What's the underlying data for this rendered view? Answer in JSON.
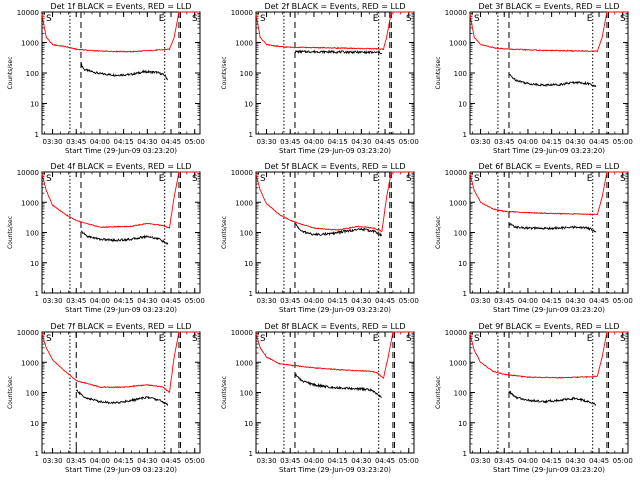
{
  "page": {
    "panel_count": 9,
    "colors": {
      "events": "#000000",
      "lld": "#ff0000",
      "axes": "#000000",
      "background": "#ffffff"
    }
  },
  "chart_data": [
    {
      "type": "line",
      "title": "Det 1f BLACK = Events, RED = LLD",
      "xlabel": "Start Time (29-Jun-09 03:23:20)",
      "ylabel": "Counts/sec",
      "x_tick_labels": [
        "03:30",
        "03:45",
        "04:00",
        "04:15",
        "04:30",
        "04:45",
        "05:00"
      ],
      "y_tick_labels": [
        "1",
        "10",
        "100",
        "1000",
        "10000"
      ],
      "yscale": "log",
      "ylim": [
        1,
        10000
      ],
      "xlim": [
        "03:23:20",
        "05:03:20"
      ],
      "markers": [
        "S",
        "E",
        "S"
      ],
      "series": [
        {
          "name": "Events",
          "x": [
            "03:48",
            "03:50",
            "04:00",
            "04:10",
            "04:20",
            "04:28",
            "04:36",
            "04:41",
            "04:43"
          ],
          "y": [
            200,
            130,
            95,
            85,
            90,
            110,
            105,
            85,
            60
          ]
        },
        {
          "name": "LLD",
          "x": [
            "03:23",
            "03:26",
            "03:30",
            "03:40",
            "03:45",
            "04:00",
            "04:20",
            "04:40",
            "04:44",
            "04:47",
            "04:50",
            "05:03"
          ],
          "y": [
            10000,
            1500,
            850,
            700,
            600,
            520,
            500,
            580,
            600,
            1500,
            10000,
            10000
          ]
        }
      ]
    },
    {
      "type": "line",
      "title": "Det 2f BLACK = Events, RED = LLD",
      "xlabel": "Start Time (29-Jun-09 03:23:20)",
      "ylabel": "Counts/sec",
      "x_tick_labels": [
        "03:30",
        "03:45",
        "04:00",
        "04:15",
        "04:30",
        "04:45",
        "05:00"
      ],
      "y_tick_labels": [
        "1",
        "10",
        "100",
        "1000",
        "10000"
      ],
      "yscale": "log",
      "ylim": [
        1,
        10000
      ],
      "xlim": [
        "03:23:20",
        "05:03:20"
      ],
      "markers": [
        "S",
        "E",
        "S"
      ],
      "series": [
        {
          "name": "Events",
          "x": [
            "03:48",
            "04:00",
            "04:15",
            "04:30",
            "04:41",
            "04:43"
          ],
          "y": [
            500,
            500,
            490,
            480,
            470,
            450
          ]
        },
        {
          "name": "LLD",
          "x": [
            "03:23",
            "03:26",
            "03:30",
            "03:40",
            "03:45",
            "04:00",
            "04:20",
            "04:40",
            "04:44",
            "04:46",
            "04:49",
            "05:03"
          ],
          "y": [
            10000,
            1500,
            850,
            720,
            700,
            680,
            650,
            620,
            600,
            1500,
            10000,
            10000
          ]
        }
      ]
    },
    {
      "type": "line",
      "title": "Det 3f BLACK = Events, RED = LLD",
      "xlabel": "Start Time (29-Jun-09 03:23:20)",
      "ylabel": "Counts/sec",
      "x_tick_labels": [
        "03:30",
        "03:45",
        "04:00",
        "04:15",
        "04:30",
        "04:45",
        "05:00"
      ],
      "y_tick_labels": [
        "1",
        "10",
        "100",
        "1000",
        "10000"
      ],
      "yscale": "log",
      "ylim": [
        1,
        10000
      ],
      "xlim": [
        "03:23:20",
        "05:03:20"
      ],
      "markers": [
        "S",
        "E",
        "S"
      ],
      "series": [
        {
          "name": "Events",
          "x": [
            "03:48",
            "03:52",
            "04:00",
            "04:10",
            "04:20",
            "04:30",
            "04:38",
            "04:43"
          ],
          "y": [
            90,
            60,
            45,
            40,
            42,
            50,
            45,
            35
          ]
        },
        {
          "name": "LLD",
          "x": [
            "03:23",
            "03:26",
            "03:30",
            "03:40",
            "03:50",
            "04:10",
            "04:30",
            "04:44",
            "04:47",
            "04:50",
            "05:03"
          ],
          "y": [
            10000,
            1500,
            850,
            650,
            600,
            550,
            530,
            520,
            1500,
            10000,
            10000
          ]
        }
      ]
    },
    {
      "type": "line",
      "title": "Det 4f BLACK = Events, RED = LLD",
      "xlabel": "Start Time (29-Jun-09 03:23:20)",
      "ylabel": "Counts/sec",
      "x_tick_labels": [
        "03:30",
        "03:45",
        "04:00",
        "04:15",
        "04:30",
        "04:45",
        "05:00"
      ],
      "y_tick_labels": [
        "1",
        "10",
        "100",
        "1000",
        "10000"
      ],
      "yscale": "log",
      "ylim": [
        1,
        10000
      ],
      "xlim": [
        "03:23:20",
        "05:03:20"
      ],
      "markers": [
        "S",
        "E",
        "S"
      ],
      "series": [
        {
          "name": "Events",
          "x": [
            "03:48",
            "03:52",
            "04:00",
            "04:10",
            "04:20",
            "04:30",
            "04:38",
            "04:43"
          ],
          "y": [
            110,
            75,
            60,
            55,
            60,
            75,
            60,
            40
          ]
        },
        {
          "name": "LLD",
          "x": [
            "03:23",
            "03:26",
            "03:30",
            "03:38",
            "03:45",
            "04:00",
            "04:20",
            "04:30",
            "04:40",
            "04:44",
            "04:47",
            "04:50",
            "05:03"
          ],
          "y": [
            10000,
            2500,
            800,
            400,
            250,
            150,
            160,
            200,
            170,
            140,
            1500,
            10000,
            10000
          ]
        }
      ]
    },
    {
      "type": "line",
      "title": "Det 5f BLACK = Events, RED = LLD",
      "xlabel": "Start Time (29-Jun-09 03:23:20)",
      "ylabel": "Counts/sec",
      "x_tick_labels": [
        "03:30",
        "03:45",
        "04:00",
        "04:15",
        "04:30",
        "04:45",
        "05:00"
      ],
      "y_tick_labels": [
        "1",
        "10",
        "100",
        "1000",
        "10000"
      ],
      "yscale": "log",
      "ylim": [
        1,
        10000
      ],
      "xlim": [
        "03:23:20",
        "05:03:20"
      ],
      "markers": [
        "S",
        "E",
        "S"
      ],
      "series": [
        {
          "name": "Events",
          "x": [
            "03:48",
            "03:52",
            "04:00",
            "04:10",
            "04:20",
            "04:30",
            "04:38",
            "04:43"
          ],
          "y": [
            200,
            110,
            85,
            90,
            110,
            130,
            110,
            80
          ]
        },
        {
          "name": "LLD",
          "x": [
            "03:23",
            "03:26",
            "03:30",
            "03:38",
            "03:45",
            "04:00",
            "04:15",
            "04:28",
            "04:38",
            "04:43",
            "04:46",
            "04:49",
            "05:03"
          ],
          "y": [
            10000,
            2500,
            900,
            400,
            250,
            140,
            120,
            160,
            140,
            110,
            1500,
            10000,
            10000
          ]
        }
      ]
    },
    {
      "type": "line",
      "title": "Det 6f BLACK = Events, RED = LLD",
      "xlabel": "Start Time (29-Jun-09 03:23:20)",
      "ylabel": "Counts/sec",
      "x_tick_labels": [
        "03:30",
        "03:45",
        "04:00",
        "04:15",
        "04:30",
        "04:45",
        "05:00"
      ],
      "y_tick_labels": [
        "1",
        "10",
        "100",
        "1000",
        "10000"
      ],
      "yscale": "log",
      "ylim": [
        1,
        10000
      ],
      "xlim": [
        "03:23:20",
        "05:03:20"
      ],
      "markers": [
        "S",
        "E",
        "S"
      ],
      "series": [
        {
          "name": "Events",
          "x": [
            "03:48",
            "03:52",
            "04:00",
            "04:10",
            "04:20",
            "04:30",
            "04:38",
            "04:43"
          ],
          "y": [
            200,
            150,
            140,
            135,
            140,
            150,
            140,
            110
          ]
        },
        {
          "name": "LLD",
          "x": [
            "03:23",
            "03:26",
            "03:30",
            "03:38",
            "03:45",
            "04:00",
            "04:20",
            "04:40",
            "04:44",
            "04:47",
            "04:50",
            "05:03"
          ],
          "y": [
            10000,
            2500,
            1000,
            600,
            500,
            450,
            420,
            400,
            400,
            1500,
            10000,
            10000
          ]
        }
      ]
    },
    {
      "type": "line",
      "title": "Det 7f BLACK = Events, RED = LLD",
      "xlabel": "Start Time (29-Jun-09 03:23:20)",
      "ylabel": "Counts/sec",
      "x_tick_labels": [
        "03:30",
        "03:45",
        "04:00",
        "04:15",
        "04:30",
        "04:45",
        "05:00"
      ],
      "y_tick_labels": [
        "1",
        "10",
        "100",
        "1000",
        "10000"
      ],
      "yscale": "log",
      "ylim": [
        1,
        10000
      ],
      "xlim": [
        "03:23:20",
        "05:03:20"
      ],
      "markers": [
        "S",
        "E",
        "S"
      ],
      "series": [
        {
          "name": "Events",
          "x": [
            "03:45",
            "03:50",
            "04:00",
            "04:10",
            "04:20",
            "04:30",
            "04:38",
            "04:43"
          ],
          "y": [
            120,
            70,
            50,
            45,
            55,
            70,
            55,
            40
          ]
        },
        {
          "name": "LLD",
          "x": [
            "03:23",
            "03:26",
            "03:30",
            "03:38",
            "03:45",
            "04:00",
            "04:15",
            "04:30",
            "04:40",
            "04:44",
            "04:47",
            "04:50",
            "05:03"
          ],
          "y": [
            10000,
            3000,
            1200,
            500,
            250,
            150,
            150,
            180,
            150,
            100,
            1500,
            10000,
            10000
          ]
        }
      ]
    },
    {
      "type": "line",
      "title": "Det 8f BLACK = Events, RED = LLD",
      "xlabel": "Start Time (29-Jun-09 03:23:20)",
      "ylabel": "Counts/sec",
      "x_tick_labels": [
        "03:30",
        "03:45",
        "04:00",
        "04:15",
        "04:30",
        "04:45",
        "05:00"
      ],
      "y_tick_labels": [
        "1",
        "10",
        "100",
        "1000",
        "10000"
      ],
      "yscale": "log",
      "ylim": [
        1,
        10000
      ],
      "xlim": [
        "03:23:20",
        "05:03:20"
      ],
      "markers": [
        "S",
        "E",
        "S"
      ],
      "series": [
        {
          "name": "Events",
          "x": [
            "03:48",
            "03:52",
            "04:00",
            "04:10",
            "04:20",
            "04:30",
            "04:36",
            "04:40",
            "04:43"
          ],
          "y": [
            400,
            250,
            180,
            150,
            140,
            130,
            120,
            90,
            70
          ]
        },
        {
          "name": "LLD",
          "x": [
            "03:23",
            "03:26",
            "03:30",
            "03:38",
            "03:45",
            "04:00",
            "04:20",
            "04:36",
            "04:40",
            "04:44",
            "04:47",
            "04:50",
            "05:03"
          ],
          "y": [
            10000,
            3000,
            1500,
            900,
            800,
            650,
            550,
            500,
            450,
            300,
            1500,
            10000,
            10000
          ]
        }
      ]
    },
    {
      "type": "line",
      "title": "Det 9f BLACK = Events, RED = LLD",
      "xlabel": "Start Time (29-Jun-09 03:23:20)",
      "ylabel": "Counts/sec",
      "x_tick_labels": [
        "03:30",
        "03:45",
        "04:00",
        "04:15",
        "04:30",
        "04:45",
        "05:00"
      ],
      "y_tick_labels": [
        "1",
        "10",
        "100",
        "1000",
        "10000"
      ],
      "yscale": "log",
      "ylim": [
        1,
        10000
      ],
      "xlim": [
        "03:23:20",
        "05:03:20"
      ],
      "markers": [
        "S",
        "E",
        "S"
      ],
      "series": [
        {
          "name": "Events",
          "x": [
            "03:48",
            "03:52",
            "04:00",
            "04:10",
            "04:20",
            "04:30",
            "04:38",
            "04:43"
          ],
          "y": [
            110,
            70,
            55,
            50,
            55,
            65,
            50,
            40
          ]
        },
        {
          "name": "LLD",
          "x": [
            "03:23",
            "03:26",
            "03:30",
            "03:38",
            "03:45",
            "04:00",
            "04:20",
            "04:40",
            "04:44",
            "04:47",
            "04:50",
            "05:03"
          ],
          "y": [
            10000,
            2500,
            1000,
            500,
            400,
            320,
            310,
            330,
            350,
            1500,
            10000,
            10000
          ]
        }
      ]
    }
  ]
}
